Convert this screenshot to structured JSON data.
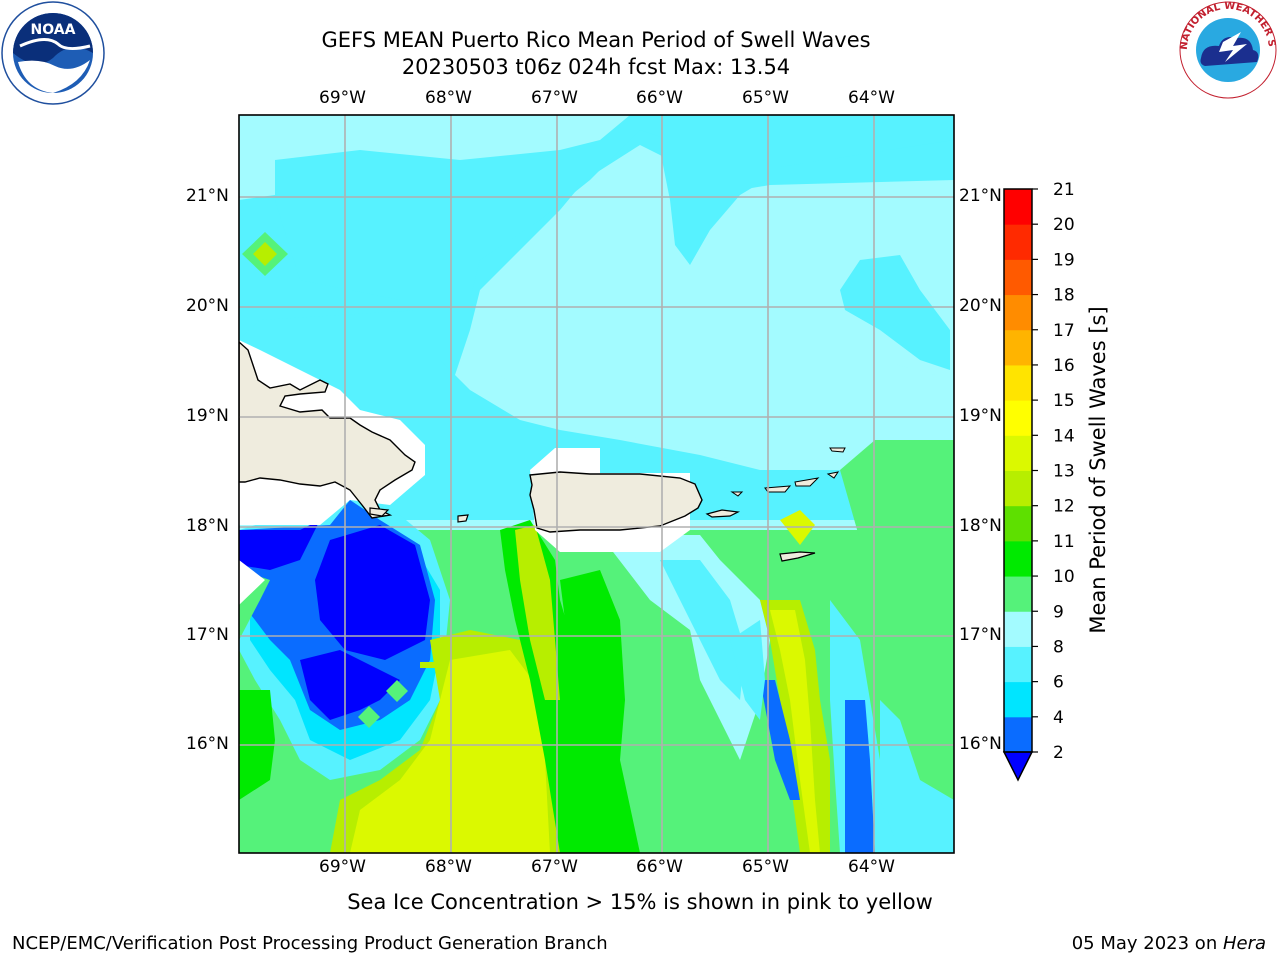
{
  "title": {
    "line1": "GEFS MEAN Puerto Rico Mean Period of Swell Waves",
    "line2": "20230503 t06z 024h fcst   Max: 13.54"
  },
  "map": {
    "region": "Puerto Rico",
    "lon_labels": [
      "69°W",
      "68°W",
      "67°W",
      "66°W",
      "65°W",
      "64°W"
    ],
    "lat_labels": [
      "21°N",
      "20°N",
      "19°N",
      "18°N",
      "17°N",
      "16°N"
    ]
  },
  "colorbar": {
    "label": "Mean Period of Swell Waves [s]",
    "ticks": [
      "2",
      "4",
      "6",
      "8",
      "9",
      "10",
      "11",
      "12",
      "13",
      "14",
      "15",
      "16",
      "17",
      "18",
      "19",
      "20",
      "21"
    ],
    "colors": [
      "#0000ff",
      "#0a6cff",
      "#00e5ff",
      "#57f2ff",
      "#a3fbff",
      "#55f27a",
      "#00ea00",
      "#5ee000",
      "#b7ee00",
      "#dbf900",
      "#ffff00",
      "#ffe400",
      "#ffb400",
      "#ff8c00",
      "#ff5a00",
      "#ff2a00",
      "#ff0000"
    ],
    "extend_below_color": "#0000ff"
  },
  "caption": "Sea Ice Concentration > 15% is shown in pink to yellow",
  "footer": {
    "left": "NCEP/EMC/Verification Post Processing Product Generation Branch",
    "date": "05 May 2023 on ",
    "machine": "Hera"
  },
  "logos": {
    "noaa_text": "NOAA",
    "nws_text": "NATIONAL WEATHER SERVICE"
  }
}
